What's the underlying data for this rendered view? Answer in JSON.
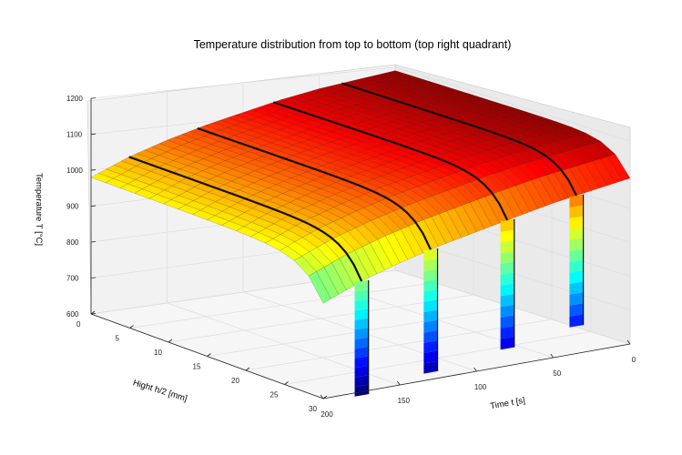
{
  "chart_data": {
    "type": "surface-3d",
    "title": "Temperature distribution from top to bottom (top right quadrant)",
    "xlabel": "Time  t  [s]",
    "ylabel": "Hight  h/2  [mm]",
    "zlabel": "Temperature  T  [°C]",
    "x_ticks": [
      "0",
      "50",
      "100",
      "150",
      "200"
    ],
    "y_ticks": [
      "0",
      "5",
      "10",
      "15",
      "20",
      "25",
      "30"
    ],
    "z_ticks": [
      "600",
      "700",
      "800",
      "900",
      "1000",
      "1100",
      "1200"
    ],
    "xlim": [
      0,
      200
    ],
    "ylim": [
      0,
      30
    ],
    "zlim": [
      600,
      1200
    ],
    "colormap": "jet",
    "grid": true,
    "surface_profile": {
      "time": [
        0,
        25,
        50,
        75,
        100,
        125,
        150,
        175,
        200
      ],
      "temperature_at_top": [
        1180,
        1160,
        1140,
        1115,
        1090,
        1065,
        1035,
        1000,
        955
      ],
      "temperature_at_center": [
        1190,
        1175,
        1160,
        1140,
        1115,
        1090,
        1060,
        1025,
        980
      ]
    },
    "cooling_dips": [
      {
        "time": 35,
        "min_temperature": 680
      },
      {
        "time": 80,
        "min_temperature": 650
      },
      {
        "time": 130,
        "min_temperature": 620
      },
      {
        "time": 175,
        "min_temperature": 590
      }
    ]
  }
}
